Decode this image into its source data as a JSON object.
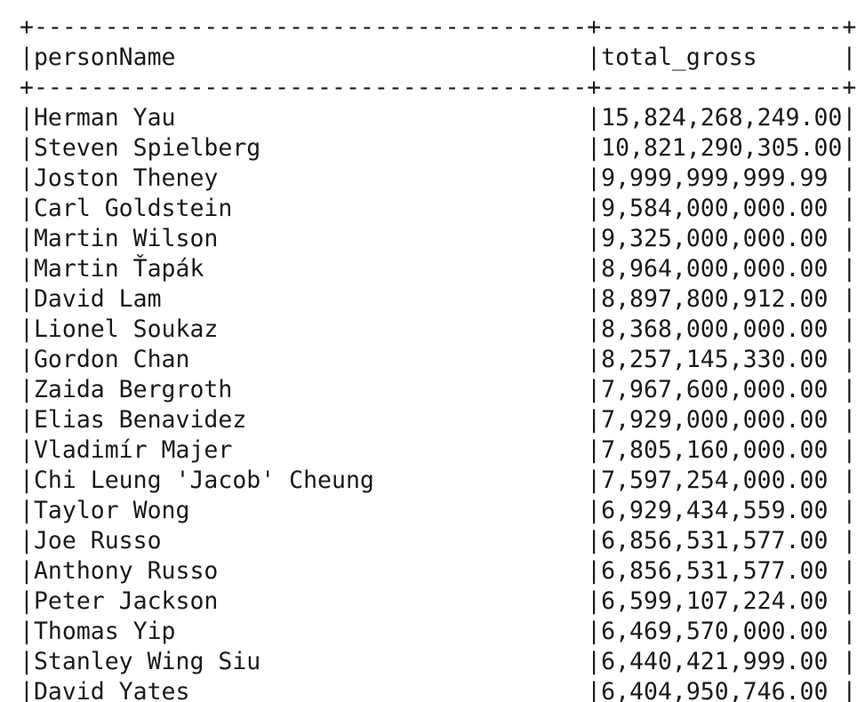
{
  "table": {
    "border": "+---------------------------------------+-----------------+",
    "header": "|personName                             |total_gross      |",
    "rows": [
      "|Herman Yau                             |15,824,268,249.00|",
      "|Steven Spielberg                       |10,821,290,305.00|",
      "|Joston Theney                          |9,999,999,999.99 |",
      "|Carl Goldstein                         |9,584,000,000.00 |",
      "|Martin Wilson                          |9,325,000,000.00 |",
      "|Martin Ťapák                           |8,964,000,000.00 |",
      "|David Lam                              |8,897,800,912.00 |",
      "|Lionel Soukaz                          |8,368,000,000.00 |",
      "|Gordon Chan                            |8,257,145,330.00 |",
      "|Zaida Bergroth                         |7,967,600,000.00 |",
      "|Elias Benavidez                        |7,929,000,000.00 |",
      "|Vladimír Majer                         |7,805,160,000.00 |",
      "|Chi Leung 'Jacob' Cheung               |7,597,254,000.00 |",
      "|Taylor Wong                            |6,929,434,559.00 |",
      "|Joe Russo                              |6,856,531,577.00 |",
      "|Anthony Russo                          |6,856,531,577.00 |",
      "|Peter Jackson                          |6,599,107,224.00 |",
      "|Thomas Yip                             |6,469,570,000.00 |",
      "|Stanley Wing Siu                       |6,440,421,999.00 |",
      "|David Yates                            |6,404,950,746.00 |"
    ]
  }
}
